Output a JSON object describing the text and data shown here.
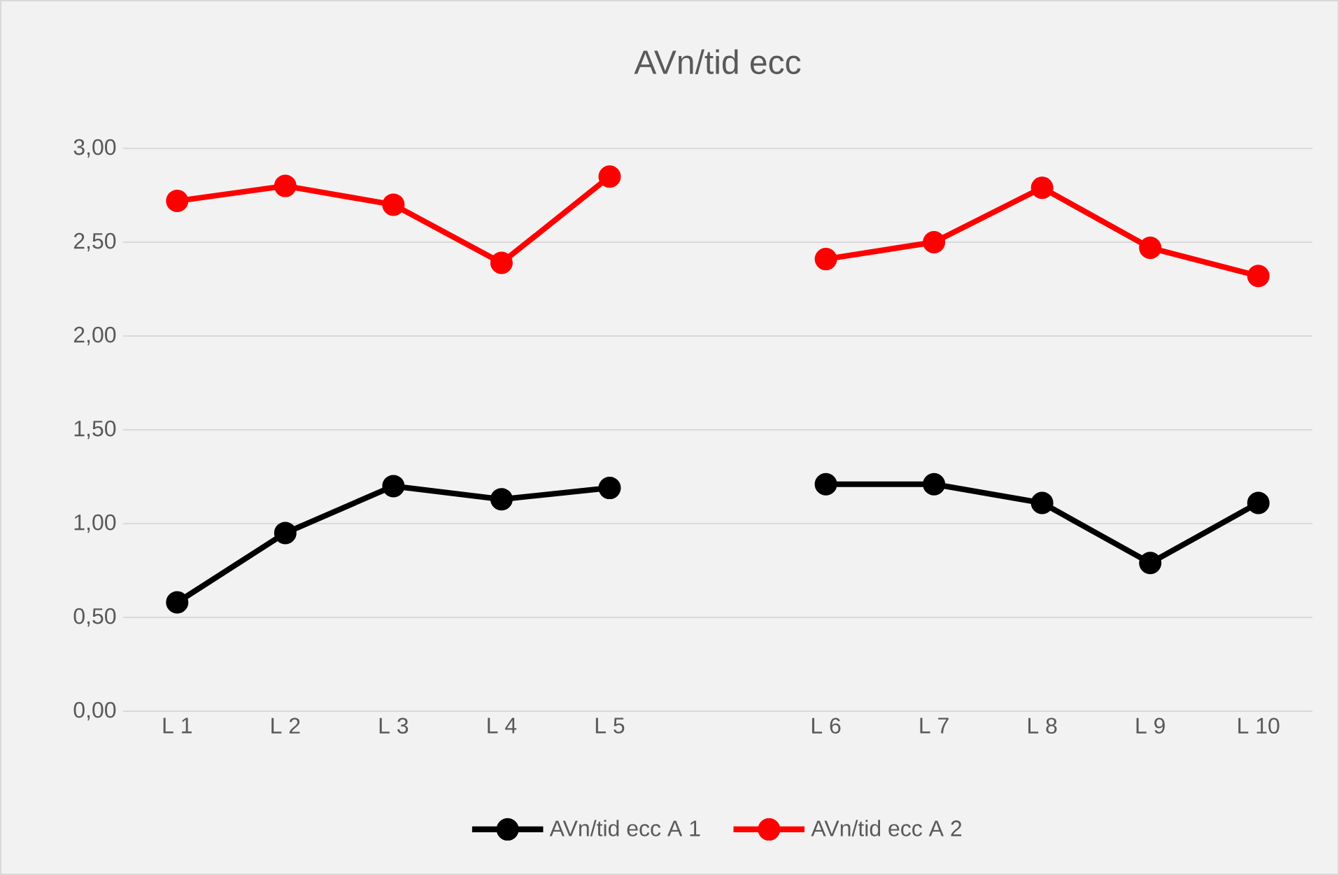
{
  "chart_data": {
    "type": "line",
    "title": "AVn/tid ecc",
    "categories": [
      "L 1",
      "L 2",
      "L 3",
      "L 4",
      "L 5",
      null,
      "L 6",
      "L 7",
      "L 8",
      "L 9",
      "L 10"
    ],
    "series": [
      {
        "name": "AVn/tid ecc A 1",
        "color": "#000000",
        "values": [
          0.58,
          0.95,
          1.2,
          1.13,
          1.19,
          null,
          1.21,
          1.21,
          1.11,
          0.79,
          1.11
        ]
      },
      {
        "name": "AVn/tid ecc A 2",
        "color": "#ff0000",
        "values": [
          2.72,
          2.8,
          2.7,
          2.39,
          2.85,
          null,
          2.41,
          2.5,
          2.79,
          2.47,
          2.32
        ]
      }
    ],
    "ylim": [
      0,
      3
    ],
    "yticks": [
      {
        "value": 0,
        "label": "0,00"
      },
      {
        "value": 0.5,
        "label": "0,50"
      },
      {
        "value": 1,
        "label": "1,00"
      },
      {
        "value": 1.5,
        "label": "1,50"
      },
      {
        "value": 2,
        "label": "2,00"
      },
      {
        "value": 2.5,
        "label": "2,50"
      },
      {
        "value": 3,
        "label": "3,00"
      }
    ],
    "grid": "y",
    "legend": "bottom",
    "marker": "circle",
    "line_style": "solid"
  }
}
